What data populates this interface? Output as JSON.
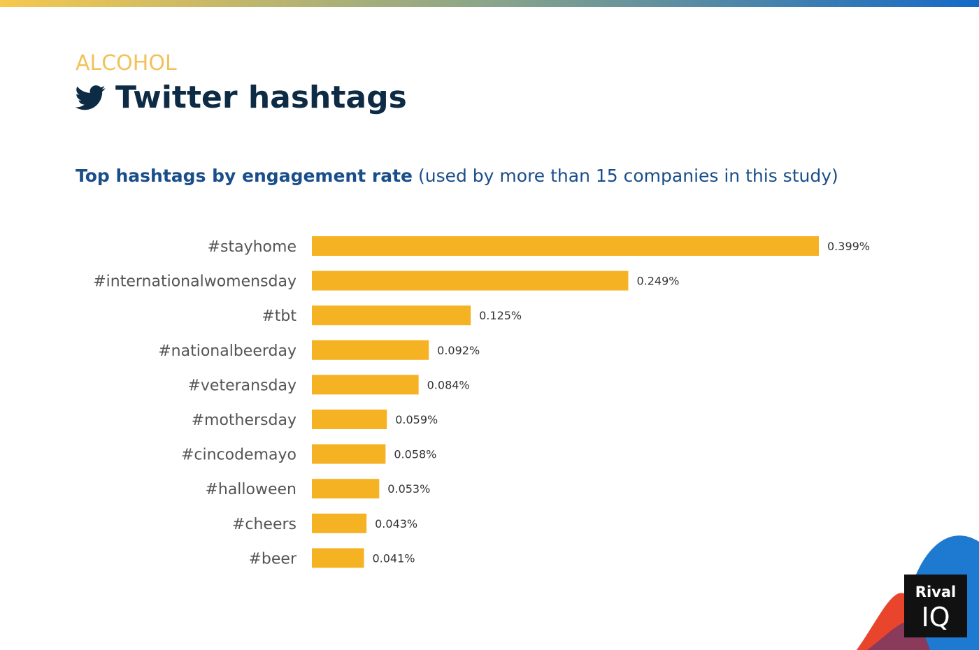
{
  "kicker": "ALCOHOL",
  "logo": {
    "line1": "Rival",
    "line2": "IQ"
  },
  "chart_data": {
    "type": "bar",
    "orientation": "horizontal",
    "title": "Twitter hashtags",
    "subtitle": "Top hashtags by engagement rate",
    "subtitle_note": "(used by more than 15 companies in this study)",
    "categories": [
      "#stayhome",
      "#internationalwomensday",
      "#tbt",
      "#nationalbeerday",
      "#veteransday",
      "#mothersday",
      "#cincodemayo",
      "#halloween",
      "#cheers",
      "#beer"
    ],
    "values": [
      0.399,
      0.249,
      0.125,
      0.092,
      0.084,
      0.059,
      0.058,
      0.053,
      0.043,
      0.041
    ],
    "value_labels": [
      "0.399%",
      "0.249%",
      "0.125%",
      "0.092%",
      "0.084%",
      "0.059%",
      "0.058%",
      "0.053%",
      "0.043%",
      "0.041%"
    ],
    "color": "#f5b223"
  }
}
